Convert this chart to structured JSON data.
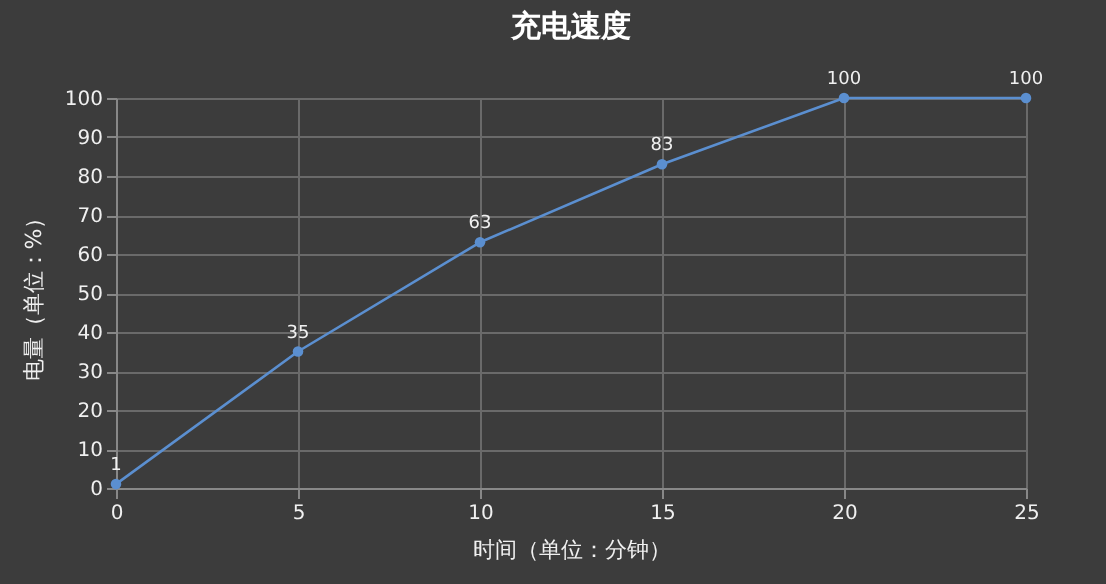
{
  "chart_data": {
    "type": "line",
    "title": "充电速度",
    "xlabel": "时间（单位：分钟）",
    "ylabel": "电量（单位：%）",
    "x": [
      0,
      5,
      10,
      15,
      20,
      25
    ],
    "series": [
      {
        "color": "#5b8fd0",
        "values": [
          1,
          35,
          63,
          83,
          100,
          100
        ]
      }
    ],
    "xlim": [
      0,
      25
    ],
    "xticks": [
      0,
      5,
      10,
      15,
      20,
      25
    ],
    "ylim": [
      0,
      100
    ],
    "yticks": [
      0,
      10,
      20,
      30,
      40,
      50,
      60,
      70,
      80,
      90,
      100
    ],
    "grid": true,
    "marker": "circle",
    "line_style": "solid",
    "data_labels": true
  }
}
